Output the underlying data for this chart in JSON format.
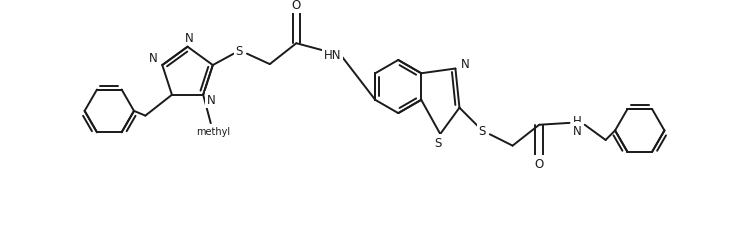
{
  "fig_width": 7.31,
  "fig_height": 2.28,
  "dpi": 100,
  "lw": 1.4,
  "fs": 8.5,
  "xlim": [
    0,
    731
  ],
  "ylim": [
    0,
    228
  ],
  "line_color": "#1a1a1a"
}
